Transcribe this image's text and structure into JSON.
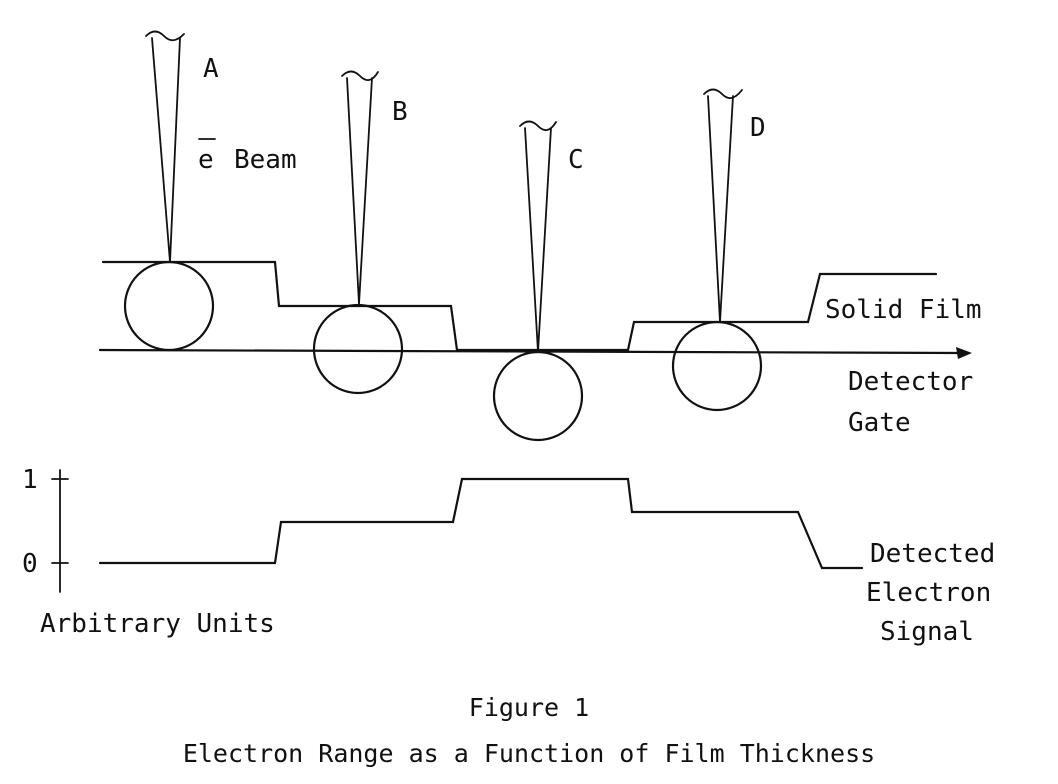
{
  "beams": [
    {
      "label": "A"
    },
    {
      "label": "B"
    },
    {
      "label": "C"
    },
    {
      "label": "D"
    }
  ],
  "labels": {
    "beam_symbol": "e",
    "beam_word": "Beam",
    "solid_film": "Solid Film",
    "detector_line1": "Detector",
    "detector_line2": "Gate",
    "signal_line1": "Detected",
    "signal_line2": "Electron",
    "signal_line3": "Signal",
    "axis_units": "Arbitrary Units",
    "tick_one": "1",
    "tick_zero": "0"
  },
  "caption": {
    "figure_number": "Figure 1",
    "title": "Electron Range as a Function of Film Thickness"
  }
}
